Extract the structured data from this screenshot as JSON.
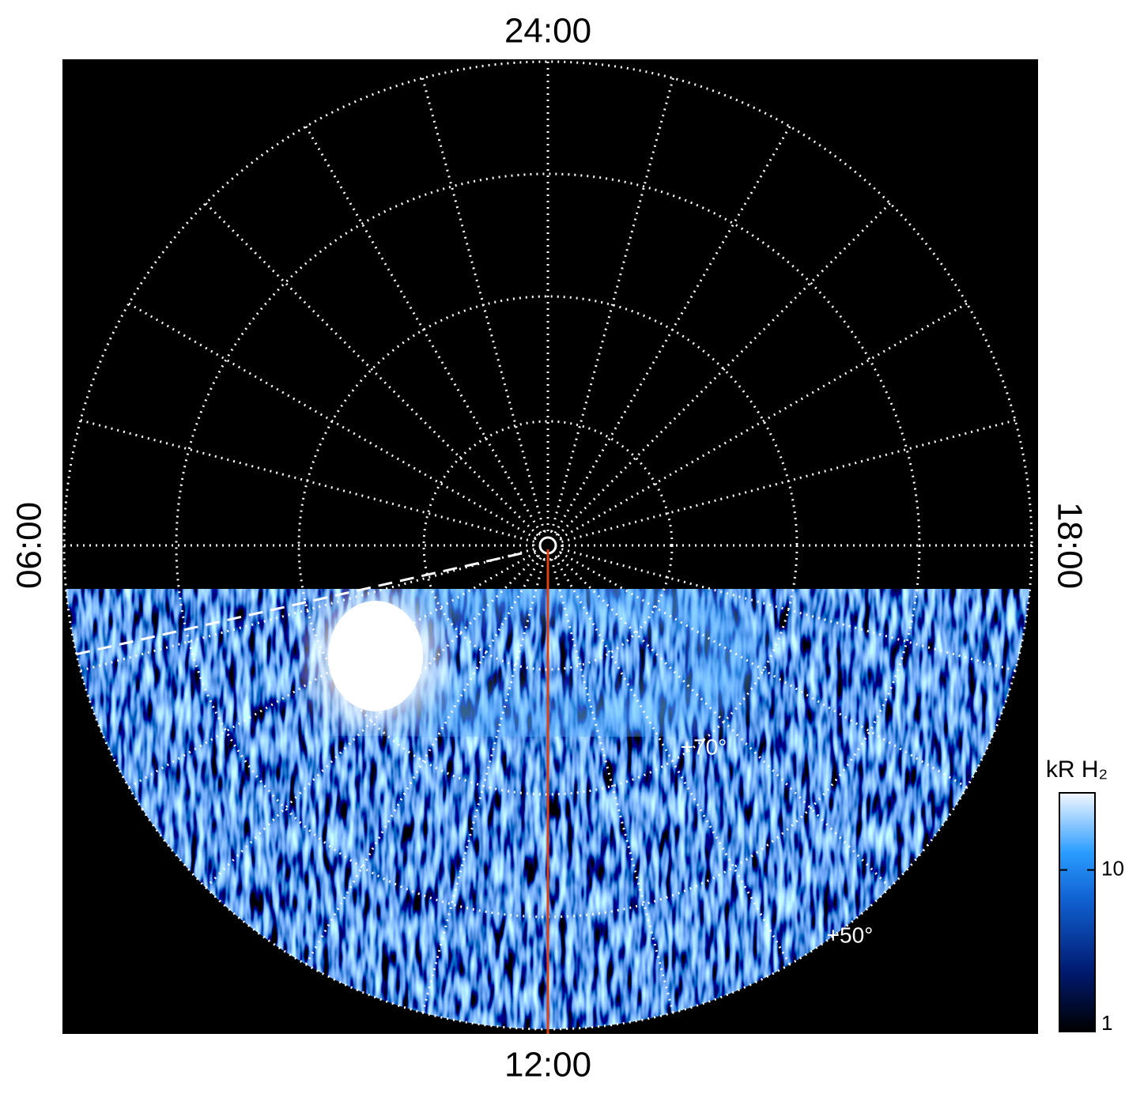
{
  "chart_data": {
    "type": "polar-image",
    "local_time_labels": {
      "top": "24:00",
      "bottom": "12:00",
      "left": "06:00",
      "right": "18:00"
    },
    "latitude_labels": [
      "+70°",
      "+50°"
    ],
    "colorbar": {
      "label": "kR H₂",
      "ylim": [
        1,
        30
      ],
      "log": true,
      "yticks": [
        1,
        10
      ]
    }
  }
}
